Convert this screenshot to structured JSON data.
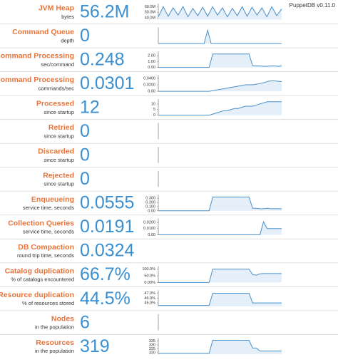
{
  "header": {
    "version": "PuppetDB v0.11.0"
  },
  "rows": [
    {
      "label": "JVM Heap",
      "sublabel": "bytes",
      "value": "56.2M",
      "ylim": [
        37000000,
        63000000
      ],
      "yticks": [
        {
          "value": 60000000,
          "label": "60.0M"
        },
        {
          "value": 50000000,
          "label": "50.0M"
        },
        {
          "value": 40000000,
          "label": "40.0M"
        }
      ],
      "values": [
        42000000,
        60000000,
        43000000,
        58000000,
        45000000,
        60000000,
        42000000,
        57000000,
        44000000,
        59000000,
        43000000,
        60000000,
        45000000,
        58000000,
        42000000,
        57000000,
        44000000,
        60000000,
        43000000,
        59000000,
        45000000,
        58000000,
        42000000,
        60000000,
        44000000,
        56000000
      ]
    },
    {
      "label": "Command Queue",
      "sublabel": "depth",
      "value": "0",
      "ylim": [
        0,
        1.1
      ],
      "values": [
        0,
        0,
        0,
        0,
        0,
        0,
        0,
        0,
        0,
        0,
        0,
        0,
        0,
        0,
        1,
        0,
        0,
        0,
        0,
        0,
        0,
        0,
        0,
        0,
        0,
        0,
        0,
        0,
        0,
        0,
        0,
        0,
        0,
        0,
        0,
        0
      ]
    },
    {
      "label": "Command Processing",
      "sublabel": "sec/command",
      "value": "0.248",
      "ylim": [
        0,
        2.5
      ],
      "yticks": [
        {
          "value": 2,
          "label": "2.00"
        },
        {
          "value": 1,
          "label": "1.00"
        },
        {
          "value": 0,
          "label": "0.00"
        }
      ],
      "values": [
        0,
        0,
        0,
        0,
        0,
        0,
        0,
        0,
        0,
        0,
        0,
        0,
        0,
        0,
        0,
        2.3,
        2.3,
        2.3,
        2.3,
        2.3,
        2.3,
        2.3,
        2.3,
        2.3,
        2.3,
        2.3,
        0.3,
        0.25,
        0.25,
        0.2,
        0.2,
        0.25,
        0.25,
        0.2,
        0.25
      ]
    },
    {
      "label": "Command Processing",
      "sublabel": "commands/sec",
      "value": "0.0301",
      "ylim": [
        0,
        0.045
      ],
      "yticks": [
        {
          "value": 0.04,
          "label": "0.0400"
        },
        {
          "value": 0.02,
          "label": "0.0200"
        },
        {
          "value": 0,
          "label": "0.00"
        }
      ],
      "values": [
        0,
        0,
        0,
        0,
        0,
        0,
        0,
        0,
        0,
        0,
        0,
        0,
        0,
        0,
        0,
        0.002,
        0.004,
        0.006,
        0.008,
        0.01,
        0.012,
        0.014,
        0.016,
        0.018,
        0.02,
        0.02,
        0.02,
        0.022,
        0.024,
        0.026,
        0.03,
        0.032,
        0.032,
        0.031,
        0.03
      ]
    },
    {
      "label": "Processed",
      "sublabel": "since startup",
      "value": "12",
      "ylim": [
        0,
        13
      ],
      "yticks": [
        10,
        5,
        0
      ],
      "values": [
        0,
        0,
        0,
        0,
        0,
        0,
        0,
        0,
        0,
        0,
        0,
        0,
        0,
        0,
        0,
        1,
        2,
        3,
        4,
        4,
        5,
        6,
        6,
        7,
        8,
        8,
        8,
        9,
        10,
        11,
        12,
        12,
        12,
        12,
        12
      ]
    },
    {
      "label": "Retried",
      "sublabel": "since startup",
      "value": "0"
    },
    {
      "label": "Discarded",
      "sublabel": "since startup",
      "value": "0"
    },
    {
      "label": "Rejected",
      "sublabel": "since startup",
      "value": "0"
    },
    {
      "label": "Enqueueing",
      "sublabel": "service time, seconds",
      "value": "0.0555",
      "ylim": [
        0,
        0.35
      ],
      "yticks": [
        {
          "value": 0.3,
          "label": "0.300"
        },
        {
          "value": 0.2,
          "label": "0.200"
        },
        {
          "value": 0.1,
          "label": "0.100"
        },
        {
          "value": 0,
          "label": "0.00"
        }
      ],
      "values": [
        0,
        0,
        0,
        0,
        0,
        0,
        0,
        0,
        0,
        0,
        0,
        0,
        0,
        0,
        0,
        0.33,
        0.33,
        0.33,
        0.33,
        0.33,
        0.33,
        0.33,
        0.33,
        0.33,
        0.33,
        0.33,
        0.06,
        0.06,
        0.05,
        0.05,
        0.06,
        0.05,
        0.05,
        0.05,
        0.05
      ]
    },
    {
      "label": "Collection Queries",
      "sublabel": "service time, seconds",
      "value": "0.0191",
      "ylim": [
        0,
        0.024
      ],
      "yticks": [
        {
          "value": 0.02,
          "label": "0.0200"
        },
        {
          "value": 0.01,
          "label": "0.0100"
        },
        {
          "value": 0,
          "label": "0.00"
        }
      ],
      "values": [
        0,
        0,
        0,
        0,
        0,
        0,
        0,
        0,
        0,
        0,
        0,
        0,
        0,
        0,
        0,
        0,
        0,
        0,
        0,
        0,
        0,
        0,
        0,
        0,
        0,
        0,
        0,
        0,
        0,
        0.021,
        0.01,
        0.01,
        0.01,
        0.01,
        0.01
      ]
    },
    {
      "label": "DB Compaction",
      "sublabel": "round trip time, seconds",
      "value": "0.0324"
    },
    {
      "label": "Catalog duplication",
      "sublabel": "% of catalogs encountered",
      "value": "66.7%",
      "ylim": [
        0,
        110
      ],
      "yticks": [
        {
          "value": 100,
          "label": "100.0%"
        },
        {
          "value": 50,
          "label": "50.0%"
        },
        {
          "value": 0,
          "label": "0.00%"
        }
      ],
      "values": [
        0,
        0,
        0,
        0,
        0,
        0,
        0,
        0,
        0,
        0,
        0,
        0,
        0,
        0,
        0,
        100,
        100,
        100,
        100,
        100,
        100,
        100,
        100,
        100,
        100,
        100,
        60,
        55,
        65,
        67,
        67,
        67,
        67,
        67,
        67
      ]
    },
    {
      "label": "Resource duplication",
      "sublabel": "% of resources stored",
      "value": "44.5%",
      "ylim": [
        44.3,
        47.3
      ],
      "yticks": [
        {
          "value": 47,
          "label": "47.0%"
        },
        {
          "value": 46,
          "label": "46.0%"
        },
        {
          "value": 45,
          "label": "45.0%"
        }
      ],
      "values": [
        44.5,
        44.5,
        44.5,
        44.5,
        44.5,
        44.5,
        44.5,
        44.5,
        44.5,
        44.5,
        44.5,
        44.5,
        44.5,
        44.5,
        44.5,
        47,
        47,
        47,
        47,
        47,
        47,
        47,
        47,
        47,
        47,
        47,
        45,
        45,
        45,
        45,
        45,
        45,
        45,
        45,
        45
      ]
    },
    {
      "label": "Nodes",
      "sublabel": "in the population",
      "value": "6"
    },
    {
      "label": "Resources",
      "sublabel": "in the population",
      "value": "319",
      "ylim": [
        318,
        337
      ],
      "yticks": [
        335,
        330,
        325,
        320
      ],
      "values": [
        319,
        319,
        319,
        319,
        319,
        319,
        319,
        319,
        319,
        319,
        319,
        319,
        319,
        319,
        319,
        336,
        336,
        336,
        336,
        336,
        336,
        336,
        336,
        336,
        336,
        336,
        326,
        326,
        322,
        322,
        322,
        322,
        322,
        322,
        322
      ]
    }
  ]
}
